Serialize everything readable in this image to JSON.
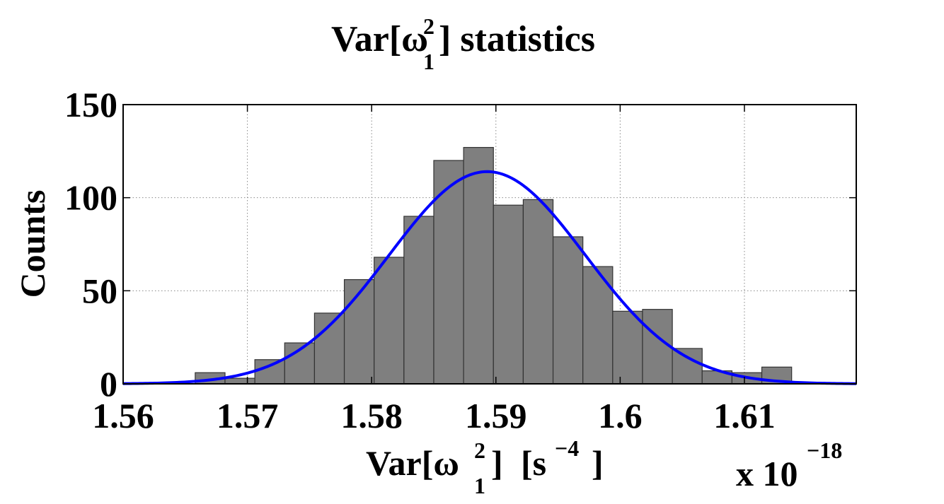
{
  "chart_data": {
    "type": "bar",
    "title": "statistics",
    "xlabel_suffix": "[s",
    "xlabel_exponent": "−4",
    "xlabel_close": "]",
    "ylabel": "Counts",
    "x_multiplier_text": "x 10",
    "x_multiplier_exponent": "−18",
    "xlim": [
      1.56,
      1.619
    ],
    "ylim": [
      0,
      150
    ],
    "xticks": [
      1.56,
      1.57,
      1.58,
      1.59,
      1.6,
      1.61
    ],
    "xtick_labels": [
      "1.56",
      "1.57",
      "1.58",
      "1.59",
      "1.6",
      "1.61"
    ],
    "yticks": [
      0,
      50,
      100,
      150
    ],
    "ytick_labels": [
      "0",
      "50",
      "100",
      "150"
    ],
    "grid": true,
    "bin_edges": [
      1.5658,
      1.5682,
      1.5706,
      1.573,
      1.5754,
      1.5778,
      1.5802,
      1.5826,
      1.585,
      1.5874,
      1.5898,
      1.5922,
      1.5946,
      1.597,
      1.5994,
      1.6018,
      1.6042,
      1.6066,
      1.609,
      1.6114
    ],
    "counts": [
      6,
      3,
      13,
      22,
      38,
      56,
      68,
      90,
      120,
      127,
      96,
      99,
      79,
      63,
      39,
      40,
      19,
      7,
      6,
      9
    ],
    "fit_curve": {
      "type": "gaussian",
      "mean": 1.5893,
      "sigma": 0.0079,
      "peak": 114
    },
    "colors": {
      "bars": "#7f7f7f",
      "fit": "#0000ff"
    }
  }
}
